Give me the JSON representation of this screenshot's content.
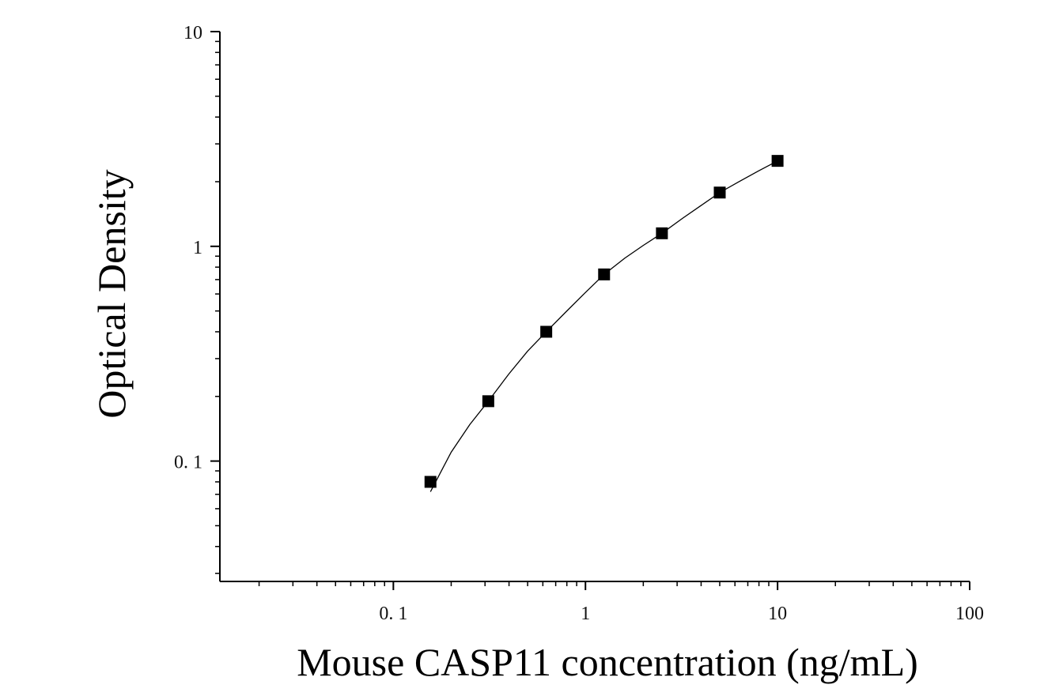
{
  "chart_data": {
    "type": "scatter",
    "title": "",
    "xlabel": "Mouse CASP11 concentration (ng/mL)",
    "ylabel": "Optical Density",
    "xscale": "log",
    "yscale": "log",
    "xlim": [
      0.0125,
      100
    ],
    "ylim": [
      0.0275,
      10
    ],
    "grid": false,
    "x_ticks": [
      {
        "value": 0.1,
        "label": "0. 1"
      },
      {
        "value": 1,
        "label": "1"
      },
      {
        "value": 10,
        "label": "10"
      },
      {
        "value": 100,
        "label": "100"
      }
    ],
    "y_ticks": [
      {
        "value": 0.1,
        "label": "0. 1"
      },
      {
        "value": 1,
        "label": "1"
      },
      {
        "value": 10,
        "label": "10"
      }
    ],
    "series": [
      {
        "marker": "square",
        "color": "#000000",
        "x": [
          0.156,
          0.312,
          0.625,
          1.25,
          2.5,
          5,
          10
        ],
        "y": [
          0.08,
          0.19,
          0.4,
          0.74,
          1.15,
          1.78,
          2.5
        ]
      }
    ],
    "fit_curve": {
      "type": "smooth",
      "color": "#000000",
      "x": [
        0.156,
        0.2,
        0.25,
        0.312,
        0.4,
        0.5,
        0.625,
        0.8,
        1.0,
        1.25,
        1.6,
        2.0,
        2.5,
        3.2,
        4.0,
        5.0,
        6.3,
        8.0,
        10
      ],
      "y": [
        0.072,
        0.11,
        0.148,
        0.19,
        0.255,
        0.325,
        0.4,
        0.5,
        0.61,
        0.74,
        0.88,
        1.01,
        1.15,
        1.35,
        1.55,
        1.78,
        2.0,
        2.25,
        2.5
      ]
    }
  }
}
